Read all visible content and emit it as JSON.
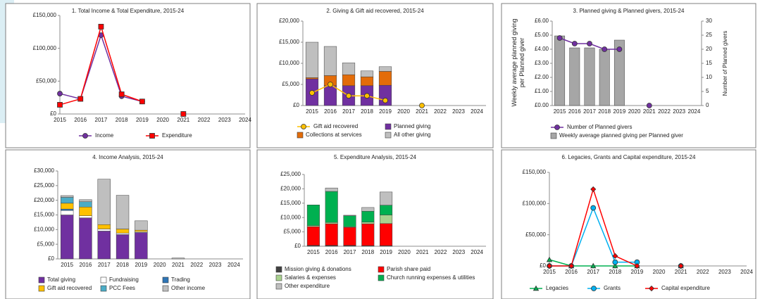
{
  "chart_data": [
    {
      "type": "line",
      "title": "1. Total Income & Total Expenditure, 2015-24",
      "categories": [
        "2015",
        "2016",
        "2017",
        "2018",
        "2019",
        "2020",
        "2021",
        "2022",
        "2023",
        "2024"
      ],
      "series": [
        {
          "name": "Income",
          "color": "#7030a0",
          "marker": "circle",
          "values": [
            31000,
            23000,
            120000,
            27000,
            19000,
            null,
            0,
            null,
            null,
            null
          ]
        },
        {
          "name": "Expenditure",
          "color": "#ff0000",
          "marker": "square",
          "values": [
            14000,
            23000,
            133000,
            30000,
            19000,
            null,
            0,
            null,
            null,
            null
          ]
        }
      ],
      "ylim": [
        0,
        150000
      ],
      "yticks": [
        {
          "value": 0,
          "label": "£0"
        },
        {
          "value": 50000,
          "label": "£50,000"
        },
        {
          "value": 100000,
          "label": "£100,000"
        },
        {
          "value": 150000,
          "label": "£150,000"
        }
      ]
    },
    {
      "type": "bar",
      "stacked": true,
      "title": "2. Giving & Gift aid recovered, 2015-24",
      "categories": [
        "2015",
        "2016",
        "2017",
        "2018",
        "2019",
        "2020",
        "2021",
        "2022",
        "2023",
        "2024"
      ],
      "series": [
        {
          "name": "Gift aid recovered",
          "type": "line",
          "color": "#ffc000",
          "marker": "circle",
          "values": [
            3000,
            5000,
            2300,
            2300,
            1200,
            null,
            0,
            null,
            null,
            null
          ]
        },
        {
          "name": "Planned giving",
          "color": "#7030a0",
          "values": [
            6300,
            4700,
            4700,
            4700,
            4800,
            null,
            null,
            null,
            null,
            null
          ]
        },
        {
          "name": "Collections at services",
          "color": "#e36c09",
          "values": [
            300,
            2400,
            2600,
            2100,
            3300,
            null,
            null,
            null,
            null,
            null
          ]
        },
        {
          "name": "All other giving",
          "color": "#bfbfbf",
          "values": [
            8400,
            6900,
            2800,
            1400,
            1100,
            null,
            null,
            null,
            null,
            null
          ]
        }
      ],
      "ylim": [
        0,
        20000
      ],
      "yticks": [
        {
          "value": 0,
          "label": "£0"
        },
        {
          "value": 5000,
          "label": "£5,000"
        },
        {
          "value": 10000,
          "label": "£10,000"
        },
        {
          "value": 15000,
          "label": "£15,000"
        },
        {
          "value": 20000,
          "label": "£20,000"
        }
      ]
    },
    {
      "type": "bar",
      "title": "3. Planned giving & Planned givers, 2015-24",
      "categories": [
        "2015",
        "2016",
        "2017",
        "2018",
        "2019",
        "2020",
        "2021",
        "2022",
        "2023",
        "2024"
      ],
      "series": [
        {
          "name": "Number of Planned givers",
          "type": "line",
          "axis": "y2",
          "color": "#7030a0",
          "marker": "circle",
          "values": [
            24,
            22,
            22,
            20,
            20,
            null,
            0,
            null,
            null,
            null
          ]
        },
        {
          "name": "Weekly average planned giving per Planned giver",
          "color": "#a6a6a6",
          "values": [
            4.95,
            4.1,
            4.1,
            4.0,
            4.65,
            null,
            null,
            null,
            null,
            null
          ]
        }
      ],
      "ylabel": "Weekly average planned giving per Planned giver",
      "y2label": "Number of Planned givers",
      "ylim": [
        0,
        6
      ],
      "yticks": [
        {
          "value": 0,
          "label": "£0.00"
        },
        {
          "value": 1,
          "label": "£1.00"
        },
        {
          "value": 2,
          "label": "£2.00"
        },
        {
          "value": 3,
          "label": "£3.00"
        },
        {
          "value": 4,
          "label": "£4.00"
        },
        {
          "value": 5,
          "label": "£5.00"
        },
        {
          "value": 6,
          "label": "£6.00"
        }
      ],
      "y2lim": [
        0,
        30
      ],
      "y2ticks": [
        0,
        5,
        10,
        15,
        20,
        25,
        30
      ]
    },
    {
      "type": "bar",
      "stacked": true,
      "title": "4. Income Analysis, 2015-24",
      "categories": [
        "2015",
        "2016",
        "2017",
        "2018",
        "2019",
        "2020",
        "2021",
        "2022",
        "2023",
        "2024"
      ],
      "series": [
        {
          "name": "Total giving",
          "color": "#7030a0",
          "values": [
            15000,
            14000,
            9500,
            8300,
            9000,
            null,
            null,
            null,
            null,
            null
          ]
        },
        {
          "name": "Fundraising",
          "color": "#ffffff",
          "values": [
            1500,
            700,
            700,
            500,
            300,
            null,
            null,
            null,
            null,
            null
          ]
        },
        {
          "name": "Trading",
          "color": "#2e75b6",
          "values": [
            500,
            0,
            0,
            0,
            0,
            null,
            null,
            null,
            null,
            null
          ]
        },
        {
          "name": "Gift aid recovered",
          "color": "#ffc000",
          "values": [
            2000,
            3000,
            1500,
            1400,
            500,
            null,
            null,
            null,
            null,
            null
          ]
        },
        {
          "name": "PCC Fees",
          "color": "#4bacc6",
          "values": [
            2000,
            1800,
            0,
            0,
            0,
            null,
            null,
            null,
            null,
            null
          ]
        },
        {
          "name": "Other income",
          "color": "#bfbfbf",
          "values": [
            600,
            700,
            15500,
            11500,
            3200,
            null,
            300,
            null,
            null,
            null
          ]
        }
      ],
      "ylim": [
        0,
        30000
      ],
      "yticks": [
        {
          "value": 0,
          "label": "£0"
        },
        {
          "value": 5000,
          "label": "£5,000"
        },
        {
          "value": 10000,
          "label": "£10,000"
        },
        {
          "value": 15000,
          "label": "£15,000"
        },
        {
          "value": 20000,
          "label": "£20,000"
        },
        {
          "value": 25000,
          "label": "£25,000"
        },
        {
          "value": 30000,
          "label": "£30,000"
        }
      ]
    },
    {
      "type": "bar",
      "stacked": true,
      "title": "5. Expenditure Analysis, 2015-24",
      "categories": [
        "2015",
        "2016",
        "2017",
        "2018",
        "2019",
        "2020",
        "2021",
        "2022",
        "2023",
        "2024"
      ],
      "series": [
        {
          "name": "Mission giving & donations",
          "color": "#404040",
          "values": [
            300,
            300,
            300,
            200,
            200,
            null,
            null,
            null,
            null,
            null
          ]
        },
        {
          "name": "Parish share paid",
          "color": "#ff0000",
          "values": [
            6500,
            7500,
            6300,
            7600,
            7700,
            null,
            null,
            null,
            null,
            null
          ]
        },
        {
          "name": "Salaries & expenses",
          "color": "#a9d18e",
          "values": [
            400,
            500,
            200,
            600,
            3000,
            null,
            null,
            null,
            null,
            null
          ]
        },
        {
          "name": "Church running expenses & utilities",
          "color": "#00b050",
          "values": [
            7200,
            10800,
            3800,
            3800,
            3400,
            null,
            null,
            null,
            null,
            null
          ]
        },
        {
          "name": "Other expenditure",
          "color": "#bfbfbf",
          "values": [
            0,
            1200,
            200,
            1300,
            4600,
            null,
            null,
            null,
            null,
            null
          ]
        }
      ],
      "ylim": [
        0,
        25000
      ],
      "yticks": [
        {
          "value": 0,
          "label": "£0"
        },
        {
          "value": 5000,
          "label": "£5,000"
        },
        {
          "value": 10000,
          "label": "£10,000"
        },
        {
          "value": 15000,
          "label": "£15,000"
        },
        {
          "value": 20000,
          "label": "£20,000"
        },
        {
          "value": 25000,
          "label": "£25,000"
        }
      ]
    },
    {
      "type": "line",
      "title": "6. Legacies, Grants and Capital expenditure, 2015-24",
      "categories": [
        "2015",
        "2016",
        "2017",
        "2018",
        "2019",
        "2020",
        "2021",
        "2022",
        "2023",
        "2024"
      ],
      "series": [
        {
          "name": "Legacies",
          "color": "#00b050",
          "marker": "triangle",
          "values": [
            10000,
            0,
            0,
            0,
            0,
            null,
            0,
            null,
            null,
            null
          ]
        },
        {
          "name": "Grants",
          "color": "#00b0f0",
          "marker": "circle",
          "values": [
            0,
            0,
            93000,
            6000,
            6000,
            null,
            0,
            null,
            null,
            null
          ]
        },
        {
          "name": "Capital expenditure",
          "color": "#ff0000",
          "marker": "diamond",
          "values": [
            0,
            0,
            123000,
            16000,
            0,
            null,
            0,
            null,
            null,
            null
          ]
        }
      ],
      "ylim": [
        0,
        150000
      ],
      "yticks": [
        {
          "value": 0,
          "label": "£0"
        },
        {
          "value": 50000,
          "label": "£50,000"
        },
        {
          "value": 100000,
          "label": "£100,000"
        },
        {
          "value": 150000,
          "label": "£150,000"
        }
      ]
    }
  ]
}
